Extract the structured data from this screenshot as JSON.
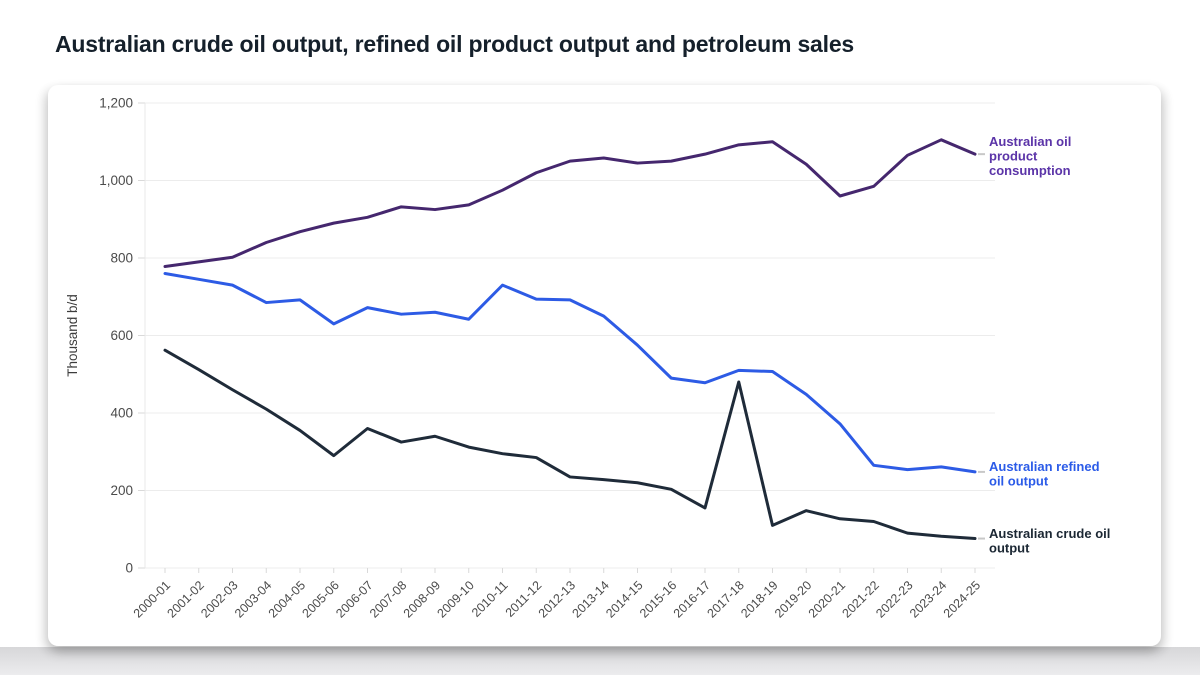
{
  "page": {
    "title": "Australian crude oil output, refined oil product output and petroleum sales",
    "background": "#ffffff",
    "title_color": "#15202b"
  },
  "chart_data": {
    "type": "line",
    "title": "Australian crude oil output, refined oil product output and petroleum sales",
    "xlabel": "",
    "ylabel": "Thousand b/d",
    "ylim": [
      0,
      1200
    ],
    "ytick_interval": 200,
    "ytick_labels": [
      "0",
      "200",
      "400",
      "600",
      "800",
      "1,000",
      "1,200"
    ],
    "grid": "horizontal",
    "grid_color": "#ececec",
    "axis_text_color": "#4b4b4b",
    "legend_position": "right-end-annotations",
    "categories": [
      "2000-01",
      "2001-02",
      "2002-03",
      "2003-04",
      "2004-05",
      "2005-06",
      "2006-07",
      "2007-08",
      "2008-09",
      "2009-10",
      "2010-11",
      "2011-12",
      "2012-13",
      "2013-14",
      "2014-15",
      "2015-16",
      "2016-17",
      "2017-18",
      "2018-19",
      "2019-20",
      "2020-21",
      "2021-22",
      "2022-23",
      "2023-24",
      "2024-25"
    ],
    "series": [
      {
        "id": "consumption",
        "name": "Australian oil product consumption",
        "label_lines": [
          "Australian oil",
          "product",
          "consumption"
        ],
        "color": "#45276e",
        "label_color": "#5b34a8",
        "values": [
          778,
          790,
          802,
          840,
          868,
          890,
          905,
          932,
          925,
          937,
          975,
          1020,
          1050,
          1058,
          1045,
          1050,
          1068,
          1092,
          1100,
          1042,
          960,
          985,
          1065,
          1105,
          1068
        ]
      },
      {
        "id": "refined",
        "name": "Australian refined oil output",
        "label_lines": [
          "Australian refined",
          "oil output"
        ],
        "color": "#2d5be5",
        "label_color": "#2b5be8",
        "values": [
          760,
          745,
          730,
          685,
          692,
          630,
          672,
          655,
          660,
          642,
          730,
          694,
          692,
          650,
          575,
          490,
          478,
          510,
          507,
          448,
          372,
          265,
          254,
          261,
          248
        ]
      },
      {
        "id": "crude",
        "name": "Australian crude oil output",
        "label_lines": [
          "Australian crude oil",
          "output"
        ],
        "color": "#1f2b39",
        "label_color": "#1b2733",
        "values": [
          562,
          512,
          460,
          410,
          355,
          290,
          360,
          325,
          340,
          312,
          295,
          285,
          235,
          228,
          220,
          203,
          155,
          480,
          110,
          148,
          127,
          120,
          90,
          82,
          76
        ]
      }
    ]
  }
}
